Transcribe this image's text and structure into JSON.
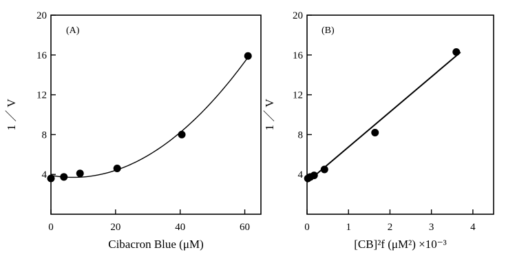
{
  "chart_data": [
    {
      "type": "scatter",
      "panel_label": "(A)",
      "xlabel": "Cibacron Blue (μM)",
      "ylabel": "1 ／ V",
      "xlim": [
        0,
        65
      ],
      "ylim": [
        0,
        20
      ],
      "xticks": [
        0,
        20,
        40,
        60
      ],
      "xtick_labels": [
        "0",
        "20",
        "40",
        "60"
      ],
      "yticks": [
        4,
        8,
        12,
        16,
        20
      ],
      "ytick_labels": [
        "4",
        "8",
        "12",
        "16",
        "20"
      ],
      "series": [
        {
          "x": [
            0,
            4,
            9,
            20.5,
            40.5,
            61
          ],
          "y": [
            3.6,
            3.75,
            4.1,
            4.6,
            8.0,
            15.9
          ],
          "fit": "quadratic"
        }
      ]
    },
    {
      "type": "scatter",
      "panel_label": "(B)",
      "xlabel": "[CB]²f (μM²) ×10⁻³",
      "ylabel": "1 ／ V",
      "xlim": [
        0,
        4.5
      ],
      "ylim": [
        0,
        20
      ],
      "xticks": [
        0,
        1,
        2,
        3,
        4
      ],
      "xtick_labels": [
        "0",
        "1",
        "2",
        "3",
        "4"
      ],
      "yticks": [
        4,
        8,
        12,
        16,
        20
      ],
      "ytick_labels": [
        "4",
        "8",
        "12",
        "16",
        "20"
      ],
      "series": [
        {
          "x": [
            0.02,
            0.08,
            0.17,
            0.42,
            1.64,
            3.6
          ],
          "y": [
            3.6,
            3.75,
            3.9,
            4.5,
            8.2,
            16.3
          ],
          "fit": "linear",
          "fit_range": [
            0,
            3.7
          ]
        }
      ]
    }
  ]
}
